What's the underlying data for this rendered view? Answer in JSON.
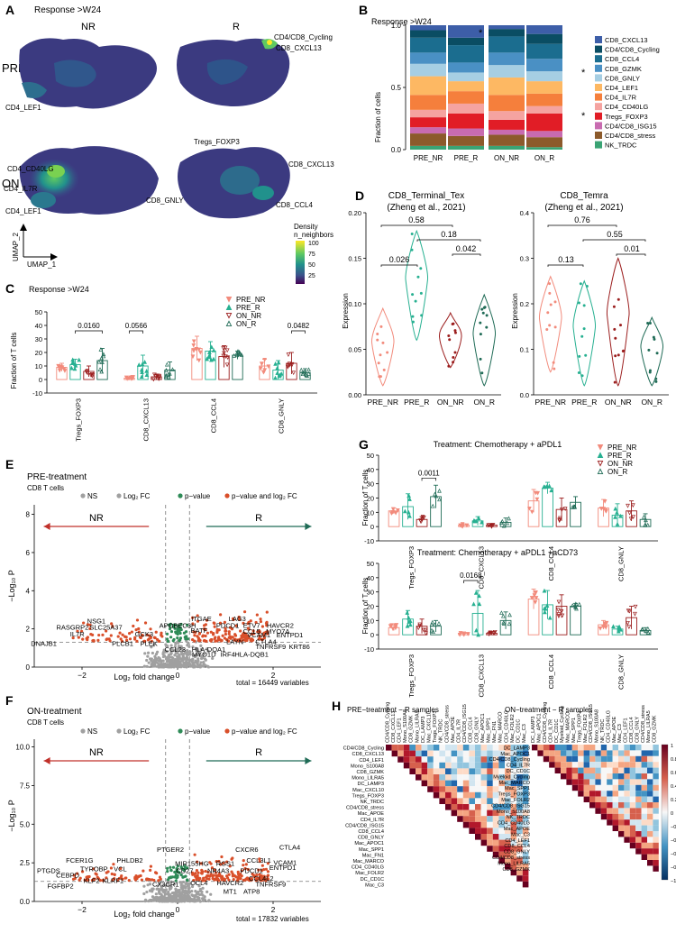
{
  "panels": {
    "A": {
      "letter": "A",
      "title": "Response >W24",
      "col_nr": "NR",
      "col_r": "R",
      "row_pre": "PRE",
      "row_on": "ON",
      "labels_pre_nr": [
        "CD4_LEF1"
      ],
      "labels_pre_r": [
        "CD4/CD8_Cycling",
        "CD8_CXCL13"
      ],
      "labels_on_nr": [
        "CD4_CD40LG",
        "CD4_IL7R",
        "CD4_LEF1"
      ],
      "labels_on_r": [
        "Tregs_FOXP3",
        "CD8_CXCL13",
        "CD8_GNLY",
        "CD8_CCL4"
      ],
      "umap1": "UMAP_1",
      "umap2": "UMAP_2",
      "legend_title1": "Density",
      "legend_title2": "n_neighbors",
      "legend_ticks": [
        "100",
        "75",
        "50",
        "25"
      ],
      "density_colors": [
        "#fde725",
        "#5ec962",
        "#21918c",
        "#3b528b",
        "#440154"
      ]
    },
    "B": {
      "letter": "B",
      "title": "Response >W24",
      "ylabel": "Fraction of cells",
      "stars": [
        "*",
        "*",
        "*"
      ]
    },
    "C": {
      "letter": "C",
      "title": "Response >W24",
      "ylabel": "Fraction of T cells",
      "pvals": [
        "0.0160",
        "0.0566",
        "0.0482"
      ]
    },
    "D": {
      "letter": "D",
      "ylabel": "Expression",
      "left_title1": "CD8_Terminal_Tex",
      "left_title2": "(Zheng et al., 2021)",
      "right_title1": "CD8_Temra",
      "right_title2": "(Zheng et al., 2021)",
      "left_pvals": [
        "0.58",
        "0.18",
        "0.026",
        "0.042"
      ],
      "right_pvals": [
        "0.76",
        "0.55",
        "0.13",
        "0.01"
      ],
      "groups": [
        "PRE_NR",
        "PRE_R",
        "ON_NR",
        "ON_R"
      ]
    },
    "E": {
      "letter": "E",
      "title": "PRE-treatment",
      "subtitle": "CD8 T cells",
      "legend": [
        "NS",
        "Log₂ FC",
        "p−value",
        "p−value and log₂ FC"
      ],
      "nr": "NR",
      "r": "R",
      "xlabel": "Log₂ fold change",
      "ylabel": "−Log₁₀ P",
      "total": "total = 16449 variables",
      "genes": [
        "NSG1",
        "RASGRP2",
        "SLC25A37",
        "IL7R",
        "DNAJB1",
        "PLCB1",
        "PLEK",
        "GCK3",
        "APOBEC3H",
        "ITGAE",
        "LAG3",
        "BATF",
        "PDCD1",
        "ETV7",
        "HAVCR2",
        "CCL5",
        "MYO7A",
        "VCAM1",
        "ENTPD1",
        "CCL23",
        "LAYN",
        "CTLA4",
        "HLA-DQA1",
        "TNFRSF9",
        "KRT86",
        "MYO1D",
        "IRF4",
        "HLA-DQB1"
      ]
    },
    "F": {
      "letter": "F",
      "title": "ON-treatment",
      "subtitle": "CD8 T cells",
      "legend": [
        "NS",
        "Log₂ FC",
        "p−value",
        "p−value and log₂ FC"
      ],
      "nr": "NR",
      "r": "R",
      "xlabel": "Log₂ fold change",
      "ylabel": "−Log₁₀ P",
      "total": "total = 17832 variables",
      "genes": [
        "PTGER2",
        "CXCR6",
        "CTLA4",
        "FCER1G",
        "PHLDB2",
        "MIR155HG",
        "RGS1",
        "CCL3L1",
        "VCAM1",
        "PTGDS",
        "TYROBP",
        "VCL",
        "CD27",
        "NR4A3",
        "PDCD1",
        "ENTPD1",
        "CEBPD",
        "KLF2",
        "KLRF1",
        "CX3CR1",
        "CCL4",
        "HAVCR2",
        "CCL4L2",
        "FGFBP2",
        "TNFRSF9",
        "MT1",
        "ATP8"
      ]
    },
    "G": {
      "letter": "G",
      "title_top": "Treatment: Chemotherapy + aPDL1",
      "title_bottom": "Treatment: Chemotherapy + aPDL1 +aCD73",
      "ylabel": "Fraction of T cells",
      "pval_top": "0.0011",
      "pval_bottom": "0.0168"
    },
    "H": {
      "letter": "H",
      "title_left": "PRE−treatment − R samples",
      "title_right": "ON−treatment − R samples",
      "rows_left": [
        "CD4/CD8_Cycling",
        "CD8_CXCL13",
        "CD4_LEF1",
        "Mono_S100A8",
        "CD8_GZMK",
        "Mono_LILRA5",
        "DC_LAMP3",
        "Mac_CXCL10",
        "Tregs_FOXP3",
        "NK_TRDC",
        "CD4/CD8_stress",
        "Mac_APOE",
        "CD4_IL7R",
        "CD4/CD8_ISG15",
        "CD8_CCL4",
        "CD8_GNLY",
        "Mac_APOC1",
        "Mac_SPP1",
        "Mac_FN1",
        "Mac_MARCO",
        "CD4_CD40LG",
        "Mac_FOLR2",
        "DC_CD1C",
        "Mac_C3"
      ],
      "rows_right": [
        "DC_LAMP3",
        "Mac_APOC1",
        "CD4/CD8_Cycling",
        "CD4_IL7R",
        "DC_CD1C",
        "Myeloid_Cycling",
        "Mac_MARCO",
        "Mac_SPP1",
        "Tregs_FOXP3",
        "Mac_FOLR2",
        "CD4/CD8_ISG15",
        "Mono_S100A8",
        "NK_TRDC",
        "CD4_CD40LG",
        "Mac_APOE",
        "Mac_C3",
        "CD4_LEF1",
        "CD8_CCL4",
        "CD8_GNLY",
        "CD4/CD8_stress",
        "Mono_LILRA5",
        "CD8_GZMK"
      ],
      "scale": [
        "1",
        "0.8",
        "0.6",
        "0.4",
        "0.2",
        "0",
        "−0.2",
        "−0.4",
        "−0.6",
        "−0.8",
        "−1"
      ],
      "colors": [
        "#67001f",
        "#b2182b",
        "#d6604d",
        "#f4a582",
        "#fddbc7",
        "#f7f7f7",
        "#d1e5f0",
        "#92c5de",
        "#4393c3",
        "#2166ac",
        "#053061"
      ]
    }
  },
  "group_colors": {
    "PRE_NR": "#f28b7c",
    "PRE_R": "#27b091",
    "ON_NR": "#9b1d1d",
    "ON_R": "#1f6b56"
  },
  "legend_groups": [
    "PRE_NR",
    "PRE_R",
    "ON_NR",
    "ON_R"
  ],
  "chart_data": [
    {
      "id": "B",
      "type": "bar",
      "title": "Response >W24",
      "ylabel": "Fraction of cells",
      "ylim": [
        0,
        1
      ],
      "yticks": [
        "0.0",
        "0.5",
        "1.0"
      ],
      "categories": [
        "PRE_NR",
        "PRE_R",
        "ON_NR",
        "ON_R"
      ],
      "series": [
        {
          "name": "NK_TRDC",
          "color": "#3aa374",
          "values": [
            0.03,
            0.03,
            0.03,
            0.02
          ]
        },
        {
          "name": "CD4/CD8_stress",
          "color": "#8c5a2b",
          "values": [
            0.1,
            0.08,
            0.09,
            0.08
          ]
        },
        {
          "name": "CD4/CD8_ISG15",
          "color": "#c86bb0",
          "values": [
            0.05,
            0.06,
            0.04,
            0.05
          ]
        },
        {
          "name": "Tregs_FOXP3",
          "color": "#e11d26",
          "values": [
            0.08,
            0.12,
            0.08,
            0.14
          ]
        },
        {
          "name": "CD4_CD40LG",
          "color": "#f5a3a0",
          "values": [
            0.06,
            0.08,
            0.07,
            0.06
          ]
        },
        {
          "name": "CD4_IL7R",
          "color": "#f57f3c",
          "values": [
            0.12,
            0.1,
            0.13,
            0.1
          ]
        },
        {
          "name": "CD4_LEF1",
          "color": "#fdb863",
          "values": [
            0.15,
            0.08,
            0.14,
            0.1
          ]
        },
        {
          "name": "CD8_GNLY",
          "color": "#a6cee3",
          "values": [
            0.1,
            0.07,
            0.1,
            0.08
          ]
        },
        {
          "name": "CD8_GZMK",
          "color": "#4a90c4",
          "values": [
            0.09,
            0.08,
            0.1,
            0.1
          ]
        },
        {
          "name": "CD8_CCL4",
          "color": "#1b6d8f",
          "values": [
            0.12,
            0.14,
            0.13,
            0.12
          ]
        },
        {
          "name": "CD4/CD8_Cycling",
          "color": "#0a4d63",
          "values": [
            0.06,
            0.06,
            0.06,
            0.08
          ]
        },
        {
          "name": "CD8_CXCL13",
          "color": "#3d5ea8",
          "values": [
            0.04,
            0.1,
            0.03,
            0.07
          ]
        }
      ]
    },
    {
      "id": "C",
      "type": "scatter",
      "title": "Response >W24",
      "ylabel": "Fraction of T cells",
      "ylim": [
        -10,
        50
      ],
      "yticks": [
        -10,
        0,
        10,
        20,
        30,
        40,
        50
      ],
      "categories": [
        "Tregs_FOXP3",
        "CD8_CXCL13",
        "CD8_CCL4",
        "CD8_GNLY"
      ],
      "groups": [
        "PRE_NR",
        "PRE_R",
        "ON_NR",
        "ON_R"
      ],
      "means": [
        [
          9,
          11,
          6,
          14
        ],
        [
          1,
          10,
          2,
          7
        ],
        [
          23,
          21,
          17,
          18
        ],
        [
          10,
          7,
          12,
          5
        ]
      ],
      "sd": [
        [
          3,
          4,
          4,
          9
        ],
        [
          1,
          8,
          2,
          6
        ],
        [
          9,
          7,
          8,
          3
        ],
        [
          5,
          7,
          8,
          3
        ]
      ]
    },
    {
      "id": "D-left",
      "type": "scatter",
      "title": "CD8_Terminal_Tex",
      "ylabel": "Expression",
      "ylim": [
        0,
        0.2
      ],
      "yticks": [
        "0.00",
        "0.05",
        "0.10",
        "0.15",
        "0.20"
      ],
      "categories": [
        "PRE_NR",
        "PRE_R",
        "ON_NR",
        "ON_R"
      ],
      "ranges": [
        [
          0.01,
          0.095
        ],
        [
          0.06,
          0.18
        ],
        [
          0.03,
          0.09
        ],
        [
          0.01,
          0.11
        ]
      ]
    },
    {
      "id": "D-right",
      "type": "scatter",
      "title": "CD8_Temra",
      "ylabel": "Expression",
      "ylim": [
        0,
        0.4
      ],
      "yticks": [
        "0.0",
        "0.1",
        "0.2",
        "0.3",
        "0.4"
      ],
      "categories": [
        "PRE_NR",
        "PRE_R",
        "ON_NR",
        "ON_R"
      ],
      "ranges": [
        [
          0.05,
          0.26
        ],
        [
          0.02,
          0.25
        ],
        [
          0.02,
          0.3
        ],
        [
          0.02,
          0.17
        ]
      ]
    },
    {
      "id": "E",
      "type": "scatter",
      "title": "PRE-treatment CD8 T cells",
      "xlabel": "Log2 fold change",
      "ylabel": "-Log10 P",
      "xlim": [
        -3,
        3
      ],
      "ylim": [
        0,
        8.5
      ],
      "xticks": [
        "−2",
        "0",
        "2"
      ],
      "yticks": [
        "0",
        "2",
        "4",
        "6",
        "8"
      ]
    },
    {
      "id": "F",
      "type": "scatter",
      "title": "ON-treatment CD8 T cells",
      "xlabel": "Log2 fold change",
      "ylabel": "-Log10 P",
      "xlim": [
        -3,
        3
      ],
      "ylim": [
        0,
        10.5
      ],
      "xticks": [
        "−2",
        "0",
        "2"
      ],
      "yticks": [
        "0.0",
        "2.5",
        "5.0",
        "7.5",
        "10.0"
      ]
    },
    {
      "id": "G-top",
      "type": "scatter",
      "title": "Treatment: Chemotherapy + aPDL1",
      "ylabel": "Fraction of T cells",
      "ylim": [
        -10,
        50
      ],
      "yticks": [
        -10,
        0,
        10,
        20,
        30,
        40,
        50
      ],
      "categories": [
        "Tregs_FOXP3",
        "CD8_CXCL13",
        "CD8_CCL4",
        "CD8_GNLY"
      ],
      "means": [
        [
          11,
          14,
          5,
          21
        ],
        [
          1,
          4,
          1,
          3
        ],
        [
          18,
          27,
          12,
          17
        ],
        [
          13,
          8,
          11,
          5
        ]
      ],
      "sd": [
        [
          2,
          9,
          2,
          8
        ],
        [
          1,
          3,
          1,
          3
        ],
        [
          8,
          4,
          8,
          4
        ],
        [
          6,
          8,
          7,
          4
        ]
      ]
    },
    {
      "id": "G-bottom",
      "type": "scatter",
      "title": "Treatment: Chemotherapy + aPDL1 +aCD73",
      "ylabel": "Fraction of T cells",
      "ylim": [
        -10,
        50
      ],
      "yticks": [
        -10,
        0,
        10,
        20,
        30,
        40,
        50
      ],
      "categories": [
        "Tregs_FOXP3",
        "CD8_CXCL13",
        "CD8_CCL4",
        "CD8_GNLY"
      ],
      "means": [
        [
          5,
          11,
          6,
          6
        ],
        [
          1,
          15,
          1,
          10
        ],
        [
          25,
          21,
          20,
          20
        ],
        [
          7,
          4,
          12,
          3
        ]
      ],
      "sd": [
        [
          2,
          6,
          5,
          4
        ],
        [
          1,
          16,
          1,
          6
        ],
        [
          7,
          10,
          8,
          2
        ],
        [
          3,
          2,
          8,
          2
        ]
      ]
    }
  ]
}
